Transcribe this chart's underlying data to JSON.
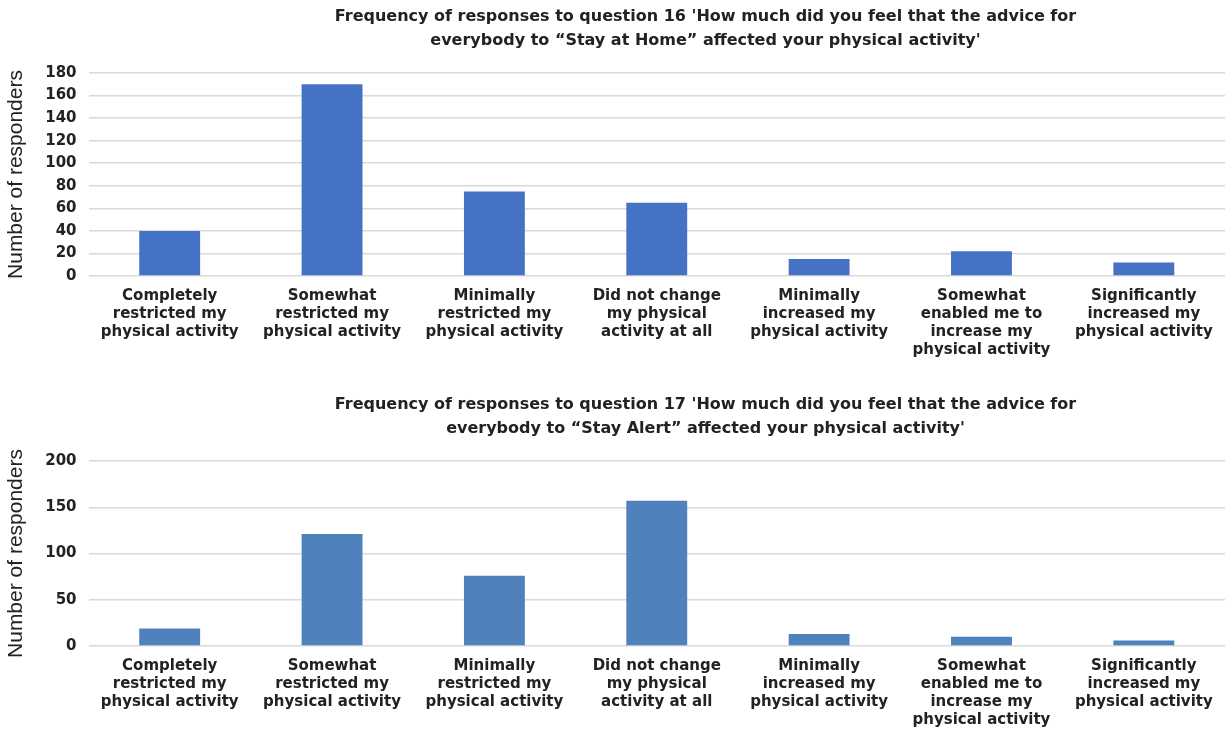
{
  "chart_data": [
    {
      "type": "bar",
      "title": "Frequency of responses to question 16 'How much did you feel that the advice for everybody to “Stay at Home” affected your physical activity'",
      "ylabel": "Number of responders",
      "categories": [
        "Completely restricted my physical activity",
        "Somewhat restricted my physical activity",
        "Minimally restricted my physical activity",
        "Did not change my physical activity at all",
        "Minimally increased my physical activity",
        "Somewhat enabled me to increase my physical activity",
        "Significantly increased my physical activity"
      ],
      "values": [
        40,
        170,
        75,
        65,
        15,
        22,
        12
      ],
      "color": "#4472c4",
      "ylim": [
        0,
        180
      ],
      "yticks": [
        0,
        20,
        40,
        60,
        80,
        100,
        120,
        140,
        160,
        180
      ],
      "grid": "y"
    },
    {
      "type": "bar",
      "title": "Frequency of responses to question 17 'How much did you feel that the advice for everybody to “Stay Alert” affected your physical activity'",
      "ylabel": "Number of responders",
      "categories": [
        "Completely restricted my physical activity",
        "Somewhat restricted my physical activity",
        "Minimally restricted my physical activity",
        "Did not change my physical activity at all",
        "Minimally increased my physical activity",
        "Somewhat enabled me to increase my physical activity",
        "Significantly increased my physical activity"
      ],
      "values": [
        19,
        121,
        76,
        157,
        13,
        10,
        6
      ],
      "color": "#4f81bd",
      "ylim": [
        0,
        200
      ],
      "yticks": [
        0,
        50,
        100,
        150,
        200
      ],
      "grid": "y"
    }
  ]
}
